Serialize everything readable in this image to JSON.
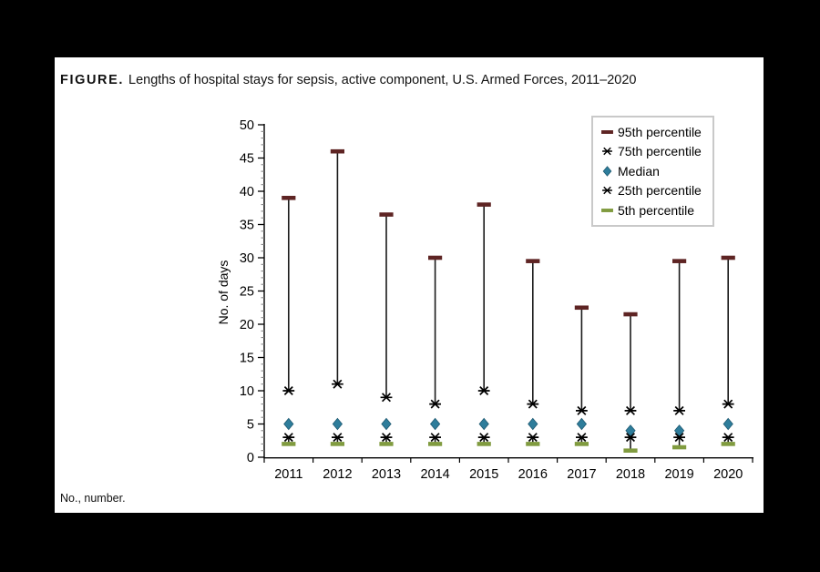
{
  "page": {
    "background": "#000000",
    "panel_background": "#ffffff"
  },
  "title": {
    "prefix": "FIGURE.",
    "text": "Lengths of hospital stays for sepsis, active component, U.S. Armed Forces, 2011–2020"
  },
  "footnote": "No., number.",
  "chart_data": {
    "type": "scatter",
    "title": "Lengths of hospital stays for sepsis, active component, U.S. Armed Forces, 2011–2020",
    "categories": [
      "2011",
      "2012",
      "2013",
      "2014",
      "2015",
      "2016",
      "2017",
      "2018",
      "2019",
      "2020"
    ],
    "series": [
      {
        "name": "95th percentile",
        "marker": "dash",
        "color": "#5e2423",
        "values": [
          39,
          46,
          36.5,
          30,
          38,
          29.5,
          22.5,
          21.5,
          29.5,
          30
        ]
      },
      {
        "name": "75th percentile",
        "marker": "asterisk",
        "color": "#000000",
        "values": [
          10,
          11,
          9,
          8,
          10,
          8,
          7,
          7,
          7,
          8
        ]
      },
      {
        "name": "Median",
        "marker": "diamond",
        "color": "#2e7d9b",
        "values": [
          5,
          5,
          5,
          5,
          5,
          5,
          5,
          4,
          4,
          5
        ]
      },
      {
        "name": "25th percentile",
        "marker": "asterisk",
        "color": "#000000",
        "values": [
          3,
          3,
          3,
          3,
          3,
          3,
          3,
          3,
          3,
          3
        ]
      },
      {
        "name": "5th percentile",
        "marker": "dash",
        "color": "#809b3f",
        "values": [
          2,
          2,
          2,
          2,
          2,
          2,
          2,
          1,
          1.5,
          2
        ]
      }
    ],
    "whiskers": [
      [
        "95th percentile",
        "75th percentile"
      ],
      [
        "25th percentile",
        "5th percentile"
      ]
    ],
    "xlabel": "",
    "ylabel": "No. of days",
    "ylim": [
      0,
      50
    ],
    "yticks": [
      0,
      5,
      10,
      15,
      20,
      25,
      30,
      35,
      40,
      45,
      50
    ],
    "minor_tick_step": 1,
    "grid": false,
    "legend_position": "top-right",
    "axis_color": "#000000",
    "whisker_color": "#1a1a1a"
  }
}
